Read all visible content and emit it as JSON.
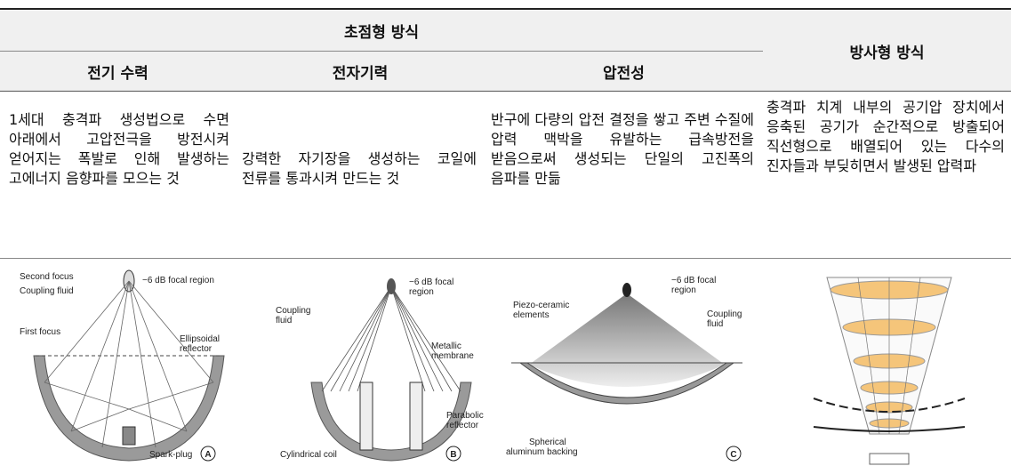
{
  "table": {
    "group_header": "초점형 방식",
    "radial_header": "방사형 방식",
    "columns": [
      "전기 수력",
      "전자기력",
      "압전성"
    ],
    "descriptions": [
      "1세대 충격파 생성법으로 수면 아래에서 고압전극을 방전시켜 얻어지는 폭발로 인해 발생하는 고에너지 음향파를 모으는 것",
      "강력한 자기장을 생성하는 코일에 전류를 통과시켜 만드는 것",
      "반구에 다량의 압전 결정을 쌓고 주변 수질에 압력 맥박을 유발하는 급속방전을 받음으로써 생성되는 단일의 고진폭의 음파를 만듦",
      "충격파 치계 내부의 공기압 장치에서 응축된 공기가 순간적으로 방출되어 직선형으로 배열되어 있는 다수의 진자들과 부딪히면서 발생된 압력파"
    ],
    "figures": [
      {
        "tag": "A",
        "labels": [
          [
            "Second focus"
          ],
          [
            "−6 dB focal region"
          ],
          [
            "Coupling fluid"
          ],
          [
            "First focus"
          ],
          [
            "Ellipsoidal",
            "reflector"
          ],
          [
            "Spark-plug"
          ]
        ]
      },
      {
        "tag": "B",
        "labels": [
          [
            "−6 dB focal",
            "region"
          ],
          [
            "Coupling",
            "fluid"
          ],
          [
            "Metallic",
            "membrane"
          ],
          [
            "Parabolic",
            "reflector"
          ],
          [
            "Cylindrical coil"
          ]
        ]
      },
      {
        "tag": "C",
        "labels": [
          [
            "Piezo-ceramic",
            "elements"
          ],
          [
            "−6 dB focal",
            "region"
          ],
          [
            "Coupling",
            "fluid"
          ],
          [
            "Spherical",
            "aluminum backing"
          ]
        ]
      }
    ]
  }
}
